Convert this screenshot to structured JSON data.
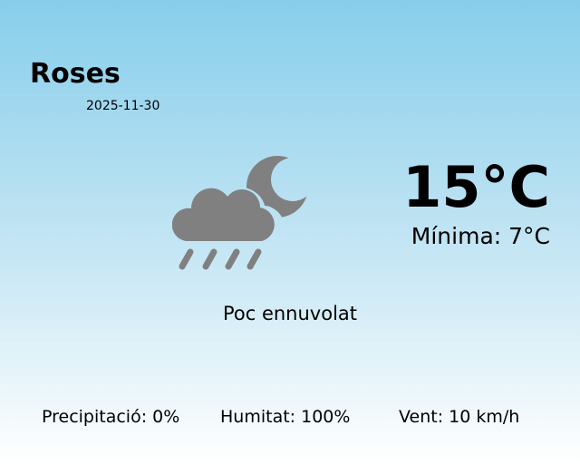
{
  "location": {
    "city": "Roses",
    "date": "2025-11-30"
  },
  "current": {
    "temperature": "15°C",
    "min_temperature": "Mínima: 7°C",
    "description": "Poc ennuvolat",
    "icon": "cloud-rain-moon-icon"
  },
  "stats": {
    "precipitation": "Precipitació: 0%",
    "humidity": "Humitat: 100%",
    "wind": "Vent: 10 km/h"
  },
  "colors": {
    "icon": "#808080",
    "bg_top": "#87ceeb",
    "bg_bottom": "#ffffff"
  }
}
